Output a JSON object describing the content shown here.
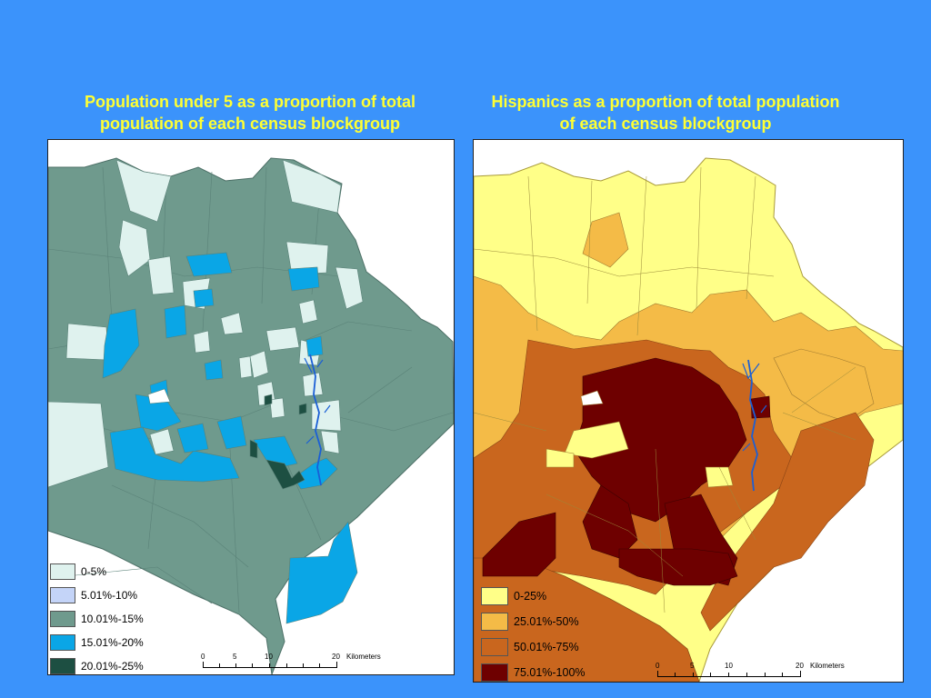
{
  "left_map": {
    "title_line1": "Population under 5 as a proportion of total",
    "title_line2": "population of each census blockgroup",
    "legend": [
      {
        "label": "0-5%",
        "color": "#dff2ee"
      },
      {
        "label": "5.01%-10%",
        "color": "#c4d4f8"
      },
      {
        "label": "10.01%-15%",
        "color": "#6f9a8d"
      },
      {
        "label": "15.01%-20%",
        "color": "#0aa6e6"
      },
      {
        "label": "20.01%-25%",
        "color": "#1d4f42"
      }
    ],
    "scale": {
      "ticks": [
        "0",
        "5",
        "10",
        "20"
      ],
      "unit": "Kilometers"
    }
  },
  "right_map": {
    "title_line1": "Hispanics as a proportion of total population",
    "title_line2": "of each census blockgroup",
    "legend": [
      {
        "label": "0-25%",
        "color": "#ffff88"
      },
      {
        "label": "25.01%-50%",
        "color": "#f4bb47"
      },
      {
        "label": "50.01%-75%",
        "color": "#c9661e"
      },
      {
        "label": "75.01%-100%",
        "color": "#6e0000"
      }
    ],
    "scale": {
      "ticks": [
        "0",
        "5",
        "10",
        "20"
      ],
      "unit": "Kilometers"
    }
  },
  "colors": {
    "background": "#3b93fb",
    "title": "#ffff33",
    "river": "#1a5fd6"
  }
}
